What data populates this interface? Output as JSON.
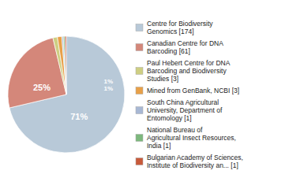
{
  "chart_data": {
    "type": "pie",
    "categories": [
      "Centre for Biodiversity\nGenomics [174]",
      "Canadian Centre for DNA\nBarcoding [61]",
      "Paul Hebert Centre for DNA\nBarcoding and Biodiversity\nStudies [3]",
      "Mined from GenBank, NCBI [3]",
      "South China Agricultural\nUniversity, Department of\nEntomology [1]",
      "National Bureau of\nAgricultural Insect Resources,\nIndia [1]",
      "Bulgarian Academy of Sciences,\nInstitute of Biodiversity an... [1]"
    ],
    "values": [
      174,
      61,
      3,
      3,
      1,
      1,
      1
    ],
    "colors": [
      "#b8c9d8",
      "#d4877a",
      "#cece82",
      "#e8a048",
      "#a8b8d4",
      "#7db87d",
      "#c85a3a"
    ],
    "annotations": [
      "71%",
      "25%",
      "1%",
      "1%"
    ],
    "legend": "right"
  }
}
